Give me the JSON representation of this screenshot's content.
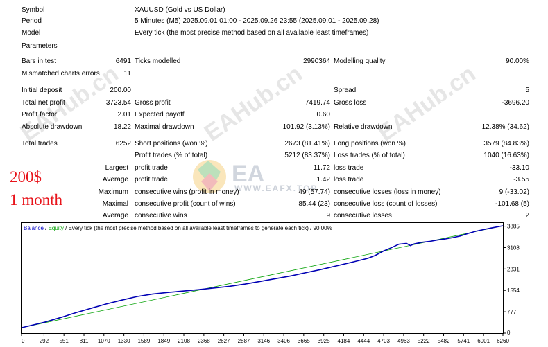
{
  "report": {
    "symbol": {
      "label": "Symbol",
      "value": "XAUUSD (Gold vs US Dollar)"
    },
    "period": {
      "label": "Period",
      "value": "5 Minutes (M5) 2025.09.01 01:00 - 2025.09.26 23:55 (2025.09.01 - 2025.09.28)"
    },
    "model": {
      "label": "Model",
      "value": "Every tick (the most precise method based on all available least timeframes)"
    },
    "parameters": {
      "label": "Parameters"
    },
    "bars_in_test": {
      "label": "Bars in test",
      "value": "6491"
    },
    "ticks_modelled": {
      "label": "Ticks modelled",
      "value": "2990364"
    },
    "modelling_quality": {
      "label": "Modelling quality",
      "value": "90.00%"
    },
    "mismatched": {
      "label": "Mismatched charts errors",
      "value": "11"
    },
    "initial_deposit": {
      "label": "Initial deposit",
      "value": "200.00"
    },
    "spread": {
      "label": "Spread",
      "value": "5"
    },
    "total_net_profit": {
      "label": "Total net profit",
      "value": "3723.54"
    },
    "gross_profit": {
      "label": "Gross profit",
      "value": "7419.74"
    },
    "gross_loss": {
      "label": "Gross loss",
      "value": "-3696.20"
    },
    "profit_factor": {
      "label": "Profit factor",
      "value": "2.01"
    },
    "expected_payoff": {
      "label": "Expected payoff",
      "value": "0.60"
    },
    "absolute_drawdown": {
      "label": "Absolute drawdown",
      "value": "18.22"
    },
    "maximal_drawdown": {
      "label": "Maximal drawdown",
      "value": "101.92 (3.13%)"
    },
    "relative_drawdown": {
      "label": "Relative drawdown",
      "value": "12.38% (34.62)"
    },
    "total_trades": {
      "label": "Total trades",
      "value": "6252"
    },
    "short_positions": {
      "label": "Short positions (won %)",
      "value": "2673 (81.41%)"
    },
    "long_positions": {
      "label": "Long positions (won %)",
      "value": "3579 (84.83%)"
    },
    "profit_trades": {
      "label": "Profit trades (% of total)",
      "value": "5212 (83.37%)"
    },
    "loss_trades": {
      "label": "Loss trades (% of total)",
      "value": "1040 (16.63%)"
    },
    "largest": {
      "label": "Largest",
      "profit_label": "profit trade",
      "profit_value": "11.72",
      "loss_label": "loss trade",
      "loss_value": "-33.10"
    },
    "average": {
      "label": "Average",
      "profit_label": "profit trade",
      "profit_value": "1.42",
      "loss_label": "loss trade",
      "loss_value": "-3.55"
    },
    "maximum": {
      "label": "Maximum",
      "wins_label": "consecutive wins (profit in money)",
      "wins_value": "49 (57.74)",
      "losses_label": "consecutive losses (loss in money)",
      "losses_value": "9 (-33.02)"
    },
    "maximal": {
      "label": "Maximal",
      "profit_label": "consecutive profit (count of wins)",
      "profit_value": "85.44 (23)",
      "loss_label": "consecutive loss (count of losses)",
      "loss_value": "-101.68 (5)"
    },
    "average_consec": {
      "label": "Average",
      "wins_label": "consecutive wins",
      "wins_value": "9",
      "losses_label": "consecutive losses",
      "losses_value": "2"
    }
  },
  "callout": {
    "line1": "200$",
    "line2": "1 month",
    "color": "#e8141b"
  },
  "watermark": {
    "text": "EAHub.cn",
    "logo_text": "EA",
    "logo_sub": "WWW.EAFX.TOP"
  },
  "chart_data": {
    "type": "line",
    "header": {
      "balance": "Balance",
      "sep1": " / ",
      "equity": "Equity",
      "rest": " / Every tick (the most precise method based on all available least timeframes to generate each tick) / 90.00%"
    },
    "x_ticks": [
      0,
      292,
      551,
      811,
      1070,
      1330,
      1589,
      1849,
      2108,
      2368,
      2627,
      2887,
      3146,
      3406,
      3665,
      3925,
      4184,
      4444,
      4703,
      4963,
      5222,
      5482,
      5741,
      6001,
      6260
    ],
    "y_ticks": [
      0,
      777,
      1554,
      2331,
      3108,
      3885
    ],
    "xlim": [
      0,
      6252
    ],
    "ylim": [
      0,
      4000
    ],
    "series": [
      {
        "name": "Balance",
        "color": "#0000b4",
        "x": [
          0,
          150,
          300,
          500,
          700,
          900,
          1100,
          1300,
          1500,
          1700,
          1900,
          2100,
          2300,
          2500,
          2700,
          2900,
          3100,
          3300,
          3500,
          3700,
          3900,
          4100,
          4300,
          4500,
          4600,
          4700,
          4800,
          4900,
          5000,
          5050,
          5100,
          5200,
          5300,
          5400,
          5500,
          5600,
          5700,
          5800,
          5900,
          6000,
          6100,
          6252
        ],
        "y": [
          200,
          300,
          400,
          560,
          740,
          900,
          1060,
          1200,
          1330,
          1420,
          1480,
          1530,
          1580,
          1640,
          1700,
          1780,
          1880,
          1980,
          2080,
          2200,
          2320,
          2450,
          2580,
          2720,
          2830,
          2980,
          3100,
          3230,
          3260,
          3180,
          3240,
          3300,
          3330,
          3380,
          3420,
          3470,
          3530,
          3620,
          3700,
          3760,
          3820,
          3900
        ]
      },
      {
        "name": "Equity",
        "color": "#00a000",
        "x": [
          0,
          6252
        ],
        "y": [
          200,
          3900
        ]
      }
    ]
  }
}
